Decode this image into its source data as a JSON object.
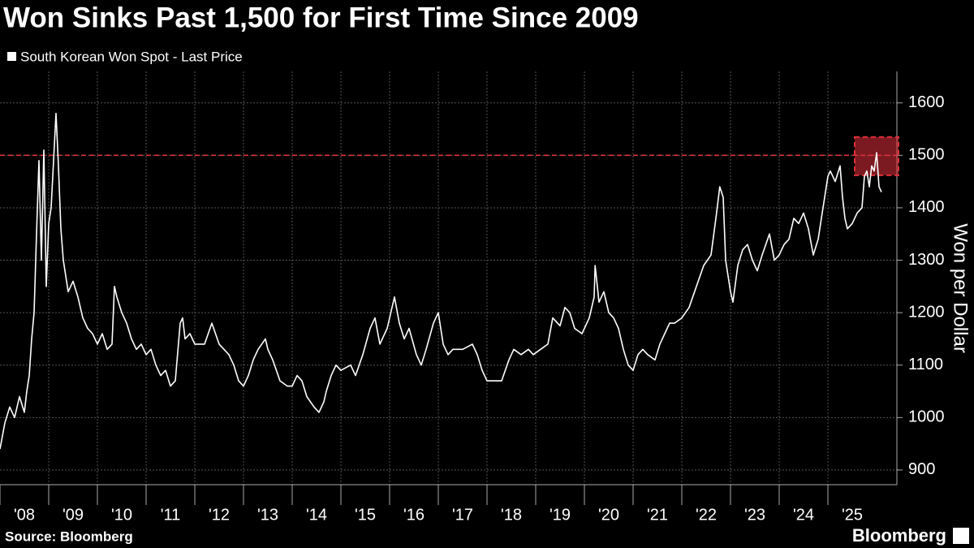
{
  "chart_data": {
    "type": "line",
    "title": "Won Sinks Past 1,500 for First Time Since 2009",
    "y_label": "Won per Dollar",
    "source": "Source: Bloomberg",
    "brand": "Bloomberg",
    "series": [
      {
        "name": "South Korean Won Spot - Last Price",
        "color": "#ffffff",
        "x": [
          2008.0,
          2008.1,
          2008.2,
          2008.3,
          2008.4,
          2008.5,
          2008.55,
          2008.6,
          2008.65,
          2008.7,
          2008.75,
          2008.8,
          2008.85,
          2008.9,
          2008.95,
          2009.0,
          2009.05,
          2009.15,
          2009.2,
          2009.25,
          2009.3,
          2009.35,
          2009.4,
          2009.5,
          2009.6,
          2009.7,
          2009.8,
          2009.9,
          2010.0,
          2010.1,
          2010.2,
          2010.3,
          2010.35,
          2010.4,
          2010.5,
          2010.6,
          2010.7,
          2010.8,
          2010.9,
          2011.0,
          2011.1,
          2011.2,
          2011.3,
          2011.4,
          2011.5,
          2011.6,
          2011.7,
          2011.75,
          2011.8,
          2011.9,
          2012.0,
          2012.2,
          2012.35,
          2012.5,
          2012.7,
          2012.8,
          2012.9,
          2013.0,
          2013.1,
          2013.2,
          2013.3,
          2013.45,
          2013.5,
          2013.6,
          2013.75,
          2013.9,
          2014.0,
          2014.1,
          2014.2,
          2014.3,
          2014.45,
          2014.55,
          2014.65,
          2014.7,
          2014.8,
          2014.9,
          2015.0,
          2015.2,
          2015.3,
          2015.45,
          2015.6,
          2015.7,
          2015.8,
          2015.95,
          2016.1,
          2016.2,
          2016.3,
          2016.4,
          2016.55,
          2016.65,
          2016.75,
          2016.9,
          2017.0,
          2017.1,
          2017.2,
          2017.3,
          2017.5,
          2017.7,
          2017.8,
          2017.9,
          2018.0,
          2018.15,
          2018.3,
          2018.45,
          2018.55,
          2018.7,
          2018.85,
          2018.95,
          2019.1,
          2019.25,
          2019.35,
          2019.5,
          2019.6,
          2019.7,
          2019.8,
          2019.95,
          2020.1,
          2020.2,
          2020.22,
          2020.3,
          2020.4,
          2020.5,
          2020.6,
          2020.7,
          2020.8,
          2020.9,
          2021.0,
          2021.1,
          2021.2,
          2021.3,
          2021.45,
          2021.55,
          2021.65,
          2021.75,
          2021.85,
          2022.0,
          2022.15,
          2022.3,
          2022.45,
          2022.6,
          2022.7,
          2022.78,
          2022.85,
          2022.9,
          2023.0,
          2023.05,
          2023.15,
          2023.25,
          2023.35,
          2023.45,
          2023.55,
          2023.65,
          2023.8,
          2023.9,
          2024.0,
          2024.1,
          2024.2,
          2024.3,
          2024.4,
          2024.5,
          2024.6,
          2024.7,
          2024.8,
          2024.9,
          2025.0,
          2025.05,
          2025.15,
          2025.25,
          2025.3,
          2025.35,
          2025.4,
          2025.5,
          2025.6,
          2025.7,
          2025.75,
          2025.8,
          2025.85,
          2025.9,
          2025.95,
          2026.0,
          2026.05,
          2026.1
        ],
        "values": [
          940,
          990,
          1020,
          1000,
          1040,
          1010,
          1050,
          1080,
          1150,
          1200,
          1350,
          1490,
          1300,
          1510,
          1250,
          1370,
          1400,
          1580,
          1480,
          1360,
          1300,
          1270,
          1240,
          1260,
          1230,
          1190,
          1170,
          1160,
          1140,
          1160,
          1130,
          1140,
          1250,
          1230,
          1200,
          1180,
          1150,
          1130,
          1140,
          1120,
          1130,
          1100,
          1080,
          1090,
          1060,
          1070,
          1180,
          1190,
          1150,
          1160,
          1140,
          1140,
          1180,
          1140,
          1120,
          1100,
          1070,
          1060,
          1080,
          1110,
          1130,
          1150,
          1130,
          1110,
          1070,
          1060,
          1060,
          1080,
          1070,
          1040,
          1020,
          1010,
          1030,
          1050,
          1080,
          1100,
          1090,
          1100,
          1080,
          1120,
          1170,
          1190,
          1140,
          1170,
          1230,
          1180,
          1150,
          1170,
          1120,
          1100,
          1130,
          1180,
          1200,
          1140,
          1120,
          1130,
          1130,
          1140,
          1120,
          1090,
          1070,
          1070,
          1070,
          1110,
          1130,
          1120,
          1130,
          1120,
          1130,
          1140,
          1190,
          1175,
          1210,
          1200,
          1170,
          1160,
          1190,
          1230,
          1290,
          1220,
          1240,
          1200,
          1190,
          1170,
          1130,
          1100,
          1090,
          1120,
          1130,
          1120,
          1110,
          1140,
          1160,
          1180,
          1180,
          1190,
          1210,
          1250,
          1290,
          1310,
          1380,
          1440,
          1420,
          1300,
          1240,
          1220,
          1290,
          1320,
          1330,
          1300,
          1280,
          1310,
          1350,
          1300,
          1310,
          1330,
          1340,
          1380,
          1370,
          1390,
          1360,
          1310,
          1340,
          1400,
          1460,
          1470,
          1450,
          1480,
          1420,
          1380,
          1360,
          1370,
          1390,
          1400,
          1460,
          1470,
          1440,
          1480,
          1470,
          1505,
          1440,
          1430
        ]
      }
    ],
    "xlim": [
      2008,
      2026.45
    ],
    "xticks": [
      {
        "value": 2008,
        "label": "'08"
      },
      {
        "value": 2009,
        "label": "'09"
      },
      {
        "value": 2010,
        "label": "'10"
      },
      {
        "value": 2011,
        "label": "'11"
      },
      {
        "value": 2012,
        "label": "'12"
      },
      {
        "value": 2013,
        "label": "'13"
      },
      {
        "value": 2014,
        "label": "'14"
      },
      {
        "value": 2015,
        "label": "'15"
      },
      {
        "value": 2016,
        "label": "'16"
      },
      {
        "value": 2017,
        "label": "'17"
      },
      {
        "value": 2018,
        "label": "'18"
      },
      {
        "value": 2019,
        "label": "'19"
      },
      {
        "value": 2020,
        "label": "'20"
      },
      {
        "value": 2021,
        "label": "'21"
      },
      {
        "value": 2022,
        "label": "'22"
      },
      {
        "value": 2023,
        "label": "'23"
      },
      {
        "value": 2024,
        "label": "'24"
      },
      {
        "value": 2025,
        "label": "'25"
      }
    ],
    "ylim": [
      872,
      1660
    ],
    "yticks": [
      900,
      1000,
      1100,
      1200,
      1300,
      1400,
      1500,
      1600
    ],
    "grid": true,
    "reference_line": {
      "value": 1500,
      "color": "#e0303a"
    },
    "highlight_box": {
      "xlim": [
        2025.55,
        2026.45
      ],
      "ylim": [
        1462,
        1535
      ],
      "color": "#e0303a"
    }
  }
}
